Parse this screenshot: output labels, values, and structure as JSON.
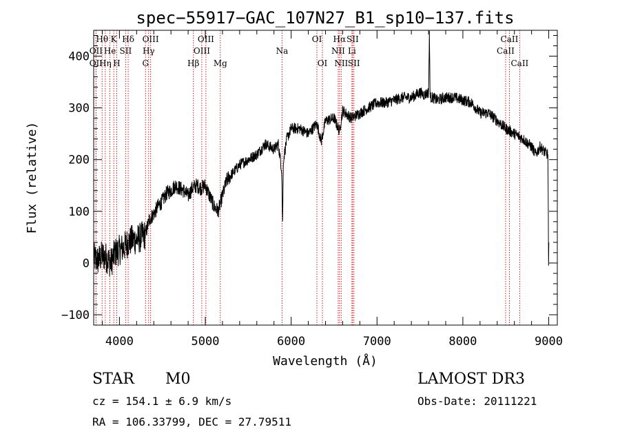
{
  "chart_data": {
    "type": "line",
    "title": "spec−55917−GAC_107N27_B1_sp10−137.fits",
    "xlabel": "Wavelength (Å)",
    "ylabel": "Flux (relative)",
    "xlim": [
      3700,
      9100
    ],
    "ylim": [
      -120,
      450
    ],
    "x_ticks": [
      4000,
      5000,
      6000,
      7000,
      8000,
      9000
    ],
    "x_tick_labels": [
      "4000",
      "5000",
      "6000",
      "7000",
      "8000",
      "9000"
    ],
    "y_ticks": [
      -100,
      0,
      100,
      200,
      300,
      400
    ],
    "y_tick_labels": [
      "−100",
      "0",
      "100",
      "200",
      "300",
      "400"
    ],
    "grid": false,
    "line_color": "#000000",
    "marker_color": "#cc0000",
    "series": [
      {
        "x": [
          3700,
          3750,
          3800,
          3850,
          3900,
          3950,
          4000,
          4050,
          4100,
          4150,
          4200,
          4250,
          4300,
          4350,
          4400,
          4450,
          4500,
          4550,
          4600,
          4650,
          4700,
          4750,
          4800,
          4850,
          4900,
          4950,
          5000,
          5050,
          5100,
          5150,
          5200,
          5250,
          5300,
          5350,
          5400,
          5500,
          5600,
          5700,
          5800,
          5850,
          5890,
          5900,
          5910,
          5950,
          6000,
          6100,
          6200,
          6300,
          6350,
          6400,
          6500,
          6563,
          6600,
          6700,
          6800,
          6900,
          7000,
          7100,
          7200,
          7300,
          7400,
          7500,
          7550,
          7600,
          7610,
          7620,
          7650,
          7700,
          7800,
          7900,
          8000,
          8100,
          8200,
          8300,
          8400,
          8500,
          8600,
          8700,
          8800,
          8850,
          8900,
          8950,
          8990,
          9000,
          9010
        ],
        "y": [
          10,
          5,
          15,
          10,
          0,
          20,
          25,
          30,
          40,
          45,
          45,
          50,
          55,
          85,
          95,
          110,
          120,
          135,
          140,
          150,
          145,
          140,
          130,
          145,
          150,
          145,
          150,
          130,
          110,
          100,
          130,
          160,
          170,
          180,
          190,
          200,
          210,
          230,
          220,
          230,
          180,
          75,
          200,
          240,
          260,
          260,
          250,
          270,
          235,
          275,
          280,
          255,
          295,
          280,
          290,
          300,
          310,
          310,
          315,
          320,
          320,
          330,
          325,
          330,
          440,
          320,
          320,
          315,
          320,
          320,
          315,
          310,
          290,
          290,
          275,
          260,
          250,
          240,
          225,
          210,
          225,
          215,
          210,
          -5,
          40
        ]
      }
    ],
    "emission_lines": [
      {
        "name": "OII",
        "wavelength": 3727,
        "row": 2
      },
      {
        "name": "Hθ",
        "wavelength": 3798,
        "row": 1
      },
      {
        "name": "OII",
        "wavelength": 3727,
        "row": 3
      },
      {
        "name": "Hη",
        "wavelength": 3835,
        "row": 3
      },
      {
        "name": "He",
        "wavelength": 3889,
        "row": 2
      },
      {
        "name": "K",
        "wavelength": 3934,
        "row": 1
      },
      {
        "name": "H",
        "wavelength": 3969,
        "row": 3
      },
      {
        "name": "SII",
        "wavelength": 4072,
        "row": 2
      },
      {
        "name": "Hδ",
        "wavelength": 4102,
        "row": 1
      },
      {
        "name": "G",
        "wavelength": 4304,
        "row": 3
      },
      {
        "name": "Hγ",
        "wavelength": 4340,
        "row": 2
      },
      {
        "name": "OIII",
        "wavelength": 4363,
        "row": 1
      },
      {
        "name": "Hβ",
        "wavelength": 4861,
        "row": 3
      },
      {
        "name": "OIII",
        "wavelength": 4959,
        "row": 2
      },
      {
        "name": "OIII",
        "wavelength": 5007,
        "row": 1
      },
      {
        "name": "Mg",
        "wavelength": 5175,
        "row": 3
      },
      {
        "name": "Na",
        "wavelength": 5894,
        "row": 2
      },
      {
        "name": "OI",
        "wavelength": 6300,
        "row": 1
      },
      {
        "name": "OI",
        "wavelength": 6364,
        "row": 3
      },
      {
        "name": "NII",
        "wavelength": 6548,
        "row": 2
      },
      {
        "name": "Hα",
        "wavelength": 6563,
        "row": 1
      },
      {
        "name": "NII",
        "wavelength": 6583,
        "row": 3
      },
      {
        "name": "Li",
        "wavelength": 6708,
        "row": 2
      },
      {
        "name": "SII",
        "wavelength": 6716,
        "row": 1
      },
      {
        "name": "SII",
        "wavelength": 6731,
        "row": 3
      },
      {
        "name": "CaII",
        "wavelength": 8498,
        "row": 2
      },
      {
        "name": "CaII",
        "wavelength": 8542,
        "row": 1
      },
      {
        "name": "CaII",
        "wavelength": 8662,
        "row": 3
      }
    ]
  },
  "info": {
    "class": "STAR",
    "subclass": "M0",
    "survey": "LAMOST DR3",
    "redshift": "cz = 154.1 ± 6.9 km/s",
    "obsdate": "Obs-Date: 20111221",
    "coords": "RA = 106.33799, DEC =  27.79511"
  }
}
